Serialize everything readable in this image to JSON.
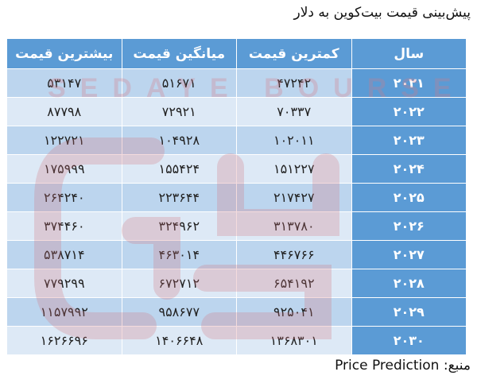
{
  "title": "پیش‌بینی قیمت بیت‌کوین به دلار",
  "watermark": "SEDAYE BOURSE",
  "colors": {
    "header": "#5b9bd5",
    "row_odd": "#bcd5ee",
    "row_even": "#dde9f6"
  },
  "table": {
    "headers": [
      "سال",
      "کمترین قیمت",
      "میانگین قیمت",
      "بیشترین قیمت"
    ],
    "rows": [
      [
        "۲۰۲۱",
        "۴۷۲۴۲",
        "۵۱۶۷۱",
        "۵۳۱۴۷"
      ],
      [
        "۲۰۲۲",
        "۷۰۳۳۷",
        "۷۲۹۲۱",
        "۸۷۷۹۸"
      ],
      [
        "۲۰۲۳",
        "۱۰۲۰۱۱",
        "۱۰۴۹۲۸",
        "۱۲۲۷۲۱"
      ],
      [
        "۲۰۲۴",
        "۱۵۱۲۲۷",
        "۱۵۵۴۲۴",
        "۱۷۵۹۹۹"
      ],
      [
        "۲۰۲۵",
        "۲۱۷۴۲۷",
        "۲۲۳۶۴۴",
        "۲۶۴۲۴۰"
      ],
      [
        "۲۰۲۶",
        "۳۱۳۷۸۰",
        "۳۲۴۹۶۲",
        "۳۷۴۴۶۰"
      ],
      [
        "۲۰۲۷",
        "۴۴۶۷۶۶",
        "۴۶۳۰۱۴",
        "۵۳۸۷۱۴"
      ],
      [
        "۲۰۲۸",
        "۶۵۴۱۹۲",
        "۶۷۲۷۱۲",
        "۷۷۹۲۹۹"
      ],
      [
        "۲۰۲۹",
        "۹۲۵۰۴۱",
        "۹۵۸۶۷۷",
        "۱۱۵۷۹۹۲"
      ],
      [
        "۲۰۳۰",
        "۱۳۶۸۳۰۱",
        "۱۴۰۶۶۴۸",
        "۱۶۲۶۶۹۶"
      ]
    ]
  },
  "source": {
    "label": "منبع:",
    "value": "Price Prediction"
  }
}
